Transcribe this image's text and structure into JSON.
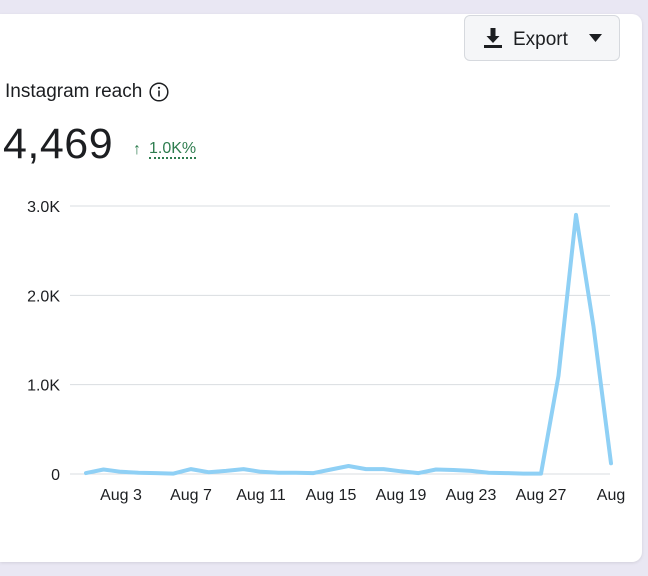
{
  "toolbar": {
    "export_label": "Export",
    "export_icon": "download-icon",
    "dropdown_icon": "caret-down-icon"
  },
  "metric": {
    "title": "Instagram reach",
    "info_icon": "info-icon",
    "value": "4,469",
    "change_arrow": "↑",
    "change_pct": "1.0K%",
    "change_color": "#2e7d4f"
  },
  "chart_data": {
    "type": "line",
    "title": "",
    "xlabel": "",
    "ylabel": "",
    "ylim": [
      0,
      3000
    ],
    "y_ticks": [
      0,
      1000,
      2000,
      3000
    ],
    "y_tick_labels": [
      "0",
      "1.0K",
      "2.0K",
      "3.0K"
    ],
    "x_tick_labels": [
      "Aug 3",
      "Aug 7",
      "Aug 11",
      "Aug 15",
      "Aug 19",
      "Aug 23",
      "Aug 27",
      "Aug"
    ],
    "x_tick_days": [
      3,
      7,
      11,
      15,
      19,
      23,
      27,
      31
    ],
    "grid": true,
    "line_color": "#8fd0f5",
    "series": [
      {
        "days": [
          1,
          2,
          3,
          4,
          5,
          6,
          7,
          8,
          9,
          10,
          11,
          12,
          13,
          14,
          15,
          16,
          17,
          18,
          19,
          20,
          21,
          22,
          23,
          24,
          25,
          26,
          27,
          28,
          29,
          30,
          31
        ],
        "values": [
          10,
          50,
          25,
          15,
          10,
          5,
          55,
          20,
          35,
          55,
          25,
          15,
          15,
          10,
          50,
          90,
          55,
          55,
          30,
          10,
          50,
          45,
          35,
          15,
          10,
          5,
          5,
          1100,
          2900,
          1650,
          120
        ]
      }
    ]
  }
}
